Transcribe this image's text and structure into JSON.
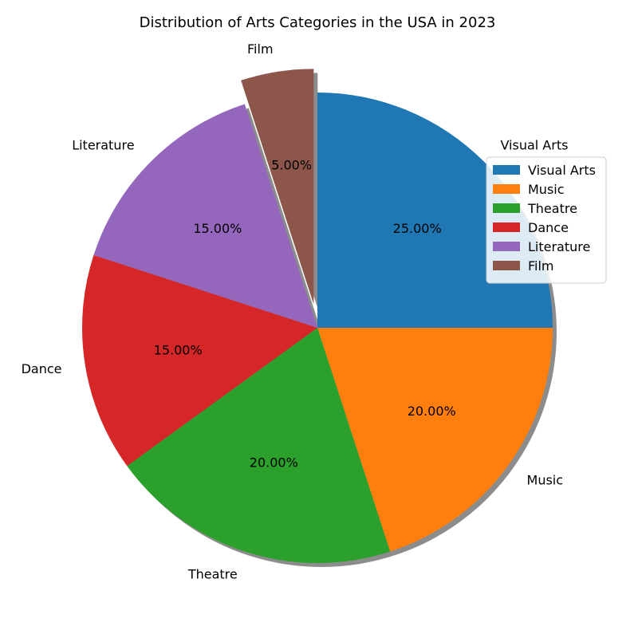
{
  "chart_data": {
    "type": "pie",
    "title": "Distribution of Arts Categories in the USA in 2023",
    "labels": [
      "Visual Arts",
      "Music",
      "Theatre",
      "Dance",
      "Literature",
      "Film"
    ],
    "values": [
      25,
      20,
      20,
      15,
      15,
      5
    ],
    "percent_labels": [
      "25.00%",
      "20.00%",
      "20.00%",
      "15.00%",
      "15.00%",
      "5.00%"
    ],
    "colors": [
      "#1f77b4",
      "#ff7f0e",
      "#2ca02c",
      "#d62728",
      "#9467bd",
      "#8c564b"
    ],
    "start_angle_deg": 90,
    "direction": "clockwise",
    "exploded": [
      "Film"
    ],
    "shadow": true,
    "legend": {
      "position": "right",
      "entries": [
        "Visual Arts",
        "Music",
        "Theatre",
        "Dance",
        "Literature",
        "Film"
      ]
    }
  }
}
